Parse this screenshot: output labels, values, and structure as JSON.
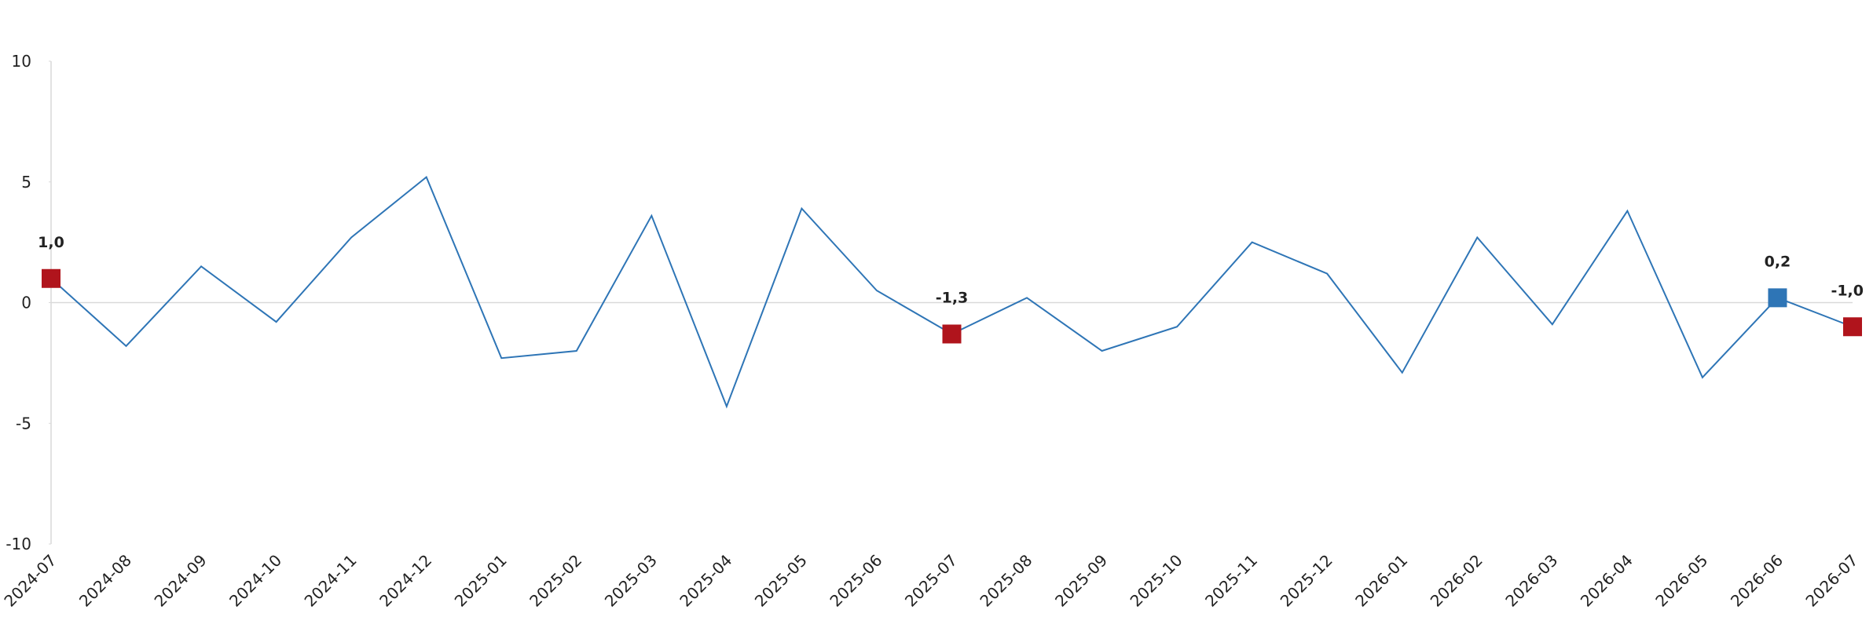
{
  "chart_data": {
    "type": "line",
    "categories": [
      "2024-07",
      "2024-08",
      "2024-09",
      "2024-10",
      "2024-11",
      "2024-12",
      "2025-01",
      "2025-02",
      "2025-03",
      "2025-04",
      "2025-05",
      "2025-06",
      "2025-07",
      "2025-08",
      "2025-09",
      "2025-10",
      "2025-11",
      "2025-12",
      "2026-01",
      "2026-02",
      "2026-03",
      "2026-04",
      "2026-05",
      "2026-06",
      "2026-07"
    ],
    "values": [
      1.0,
      -1.8,
      1.5,
      -0.8,
      2.7,
      5.2,
      -2.3,
      -2.0,
      3.6,
      -4.3,
      3.9,
      0.5,
      -1.3,
      0.2,
      -2.0,
      -1.0,
      2.5,
      1.2,
      -2.9,
      2.7,
      -0.9,
      3.8,
      -3.1,
      0.2,
      -1.0
    ],
    "value_labels": [
      "1,0",
      null,
      null,
      null,
      null,
      null,
      null,
      null,
      null,
      null,
      null,
      null,
      "-1,3",
      null,
      null,
      null,
      null,
      null,
      null,
      null,
      null,
      null,
      null,
      "0,2",
      "-1,0"
    ],
    "marker_colors": [
      "#b0141c",
      null,
      null,
      null,
      null,
      null,
      null,
      null,
      null,
      null,
      null,
      null,
      "#b0141c",
      null,
      null,
      null,
      null,
      null,
      null,
      null,
      null,
      null,
      null,
      "#2e75b6",
      "#b0141c"
    ],
    "color": "#2e75b6",
    "ylim": [
      -10,
      10
    ],
    "yticks": [
      -10,
      -5,
      0,
      5,
      10
    ],
    "grid": false
  }
}
